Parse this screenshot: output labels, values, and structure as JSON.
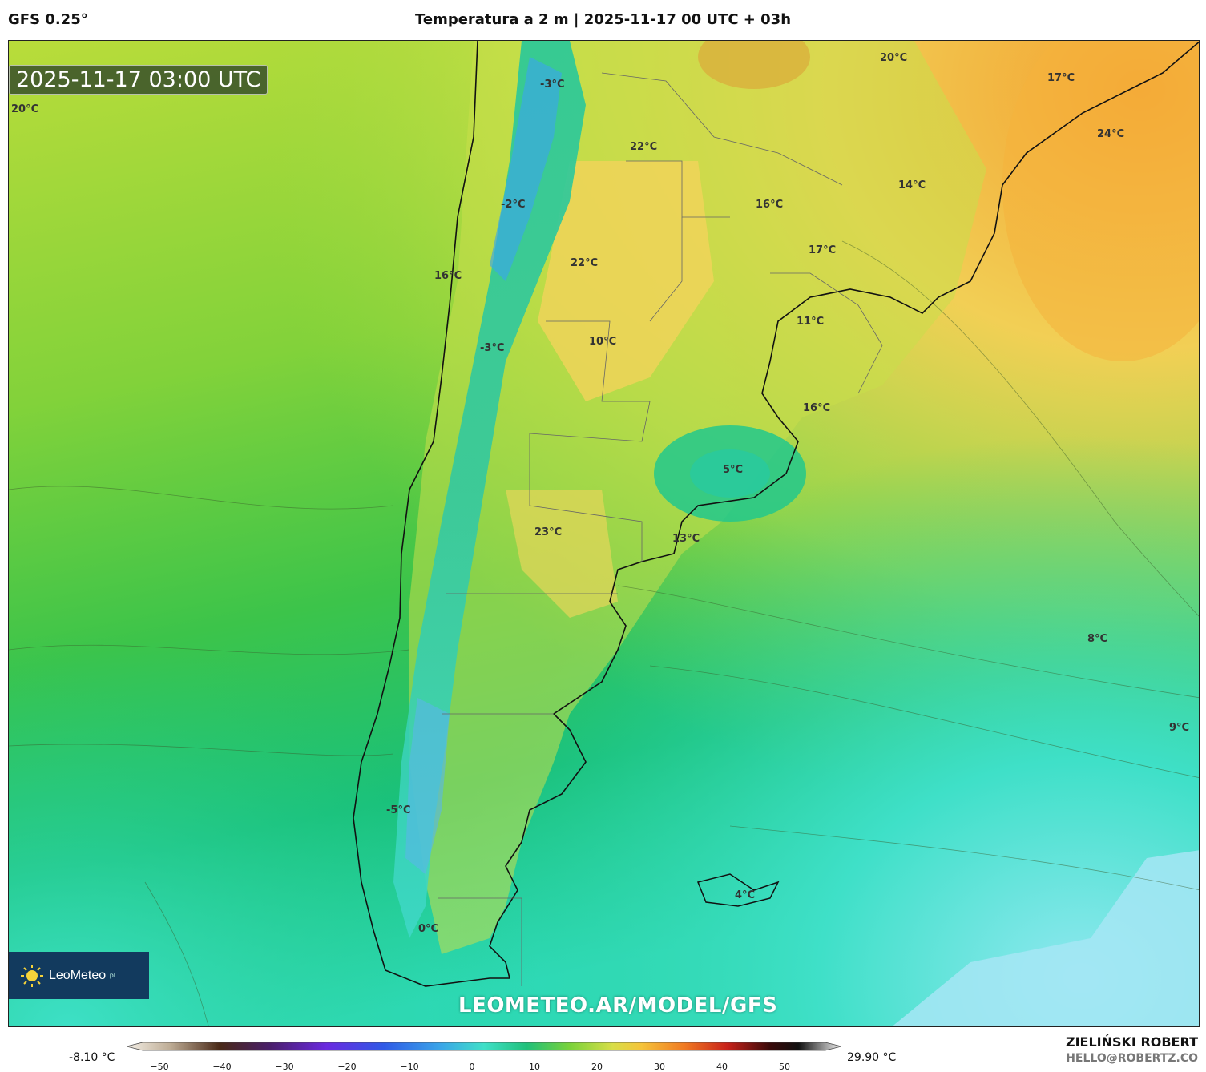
{
  "header": {
    "model": "GFS 0.25°",
    "title": "Temperatura a 2 m | 2025-11-17 00 UTC + 03h"
  },
  "timestamp": "2025-11-17 03:00 UTC",
  "watermark": "LEOMETEO.AR/MODEL/GFS",
  "logo": {
    "name": "LeoMeteo",
    "suffix": ".pl"
  },
  "colorbar": {
    "min_label": "-8.10 °C",
    "max_label": "29.90 °C",
    "ticks": [
      "−50",
      "−40",
      "−30",
      "−20",
      "−10",
      "0",
      "10",
      "20",
      "30",
      "40",
      "50"
    ]
  },
  "author": {
    "name": "ZIELIŃSKI ROBERT",
    "email": "HELLO@ROBERTZ.CO"
  },
  "temperature_labels": [
    {
      "text": "20°C"
    },
    {
      "text": "-3°C"
    },
    {
      "text": "22°C"
    },
    {
      "text": "20°C"
    },
    {
      "text": "17°C"
    },
    {
      "text": "24°C"
    },
    {
      "text": "-2°C"
    },
    {
      "text": "16°C"
    },
    {
      "text": "14°C"
    },
    {
      "text": "22°C"
    },
    {
      "text": "17°C"
    },
    {
      "text": "16°C"
    },
    {
      "text": "11°C"
    },
    {
      "text": "-3°C"
    },
    {
      "text": "10°C"
    },
    {
      "text": "16°C"
    },
    {
      "text": "5°C"
    },
    {
      "text": "23°C"
    },
    {
      "text": "13°C"
    },
    {
      "text": "8°C"
    },
    {
      "text": "9°C"
    },
    {
      "text": "-5°C"
    },
    {
      "text": "4°C"
    },
    {
      "text": "0°C"
    }
  ],
  "colors": {
    "ocean_south": "#3fe0c8",
    "ocean_mid": "#2bc98a",
    "land_warm": "#f2d35a",
    "hot": "#f39a2a",
    "andes_cold": "#3aa6e8"
  }
}
